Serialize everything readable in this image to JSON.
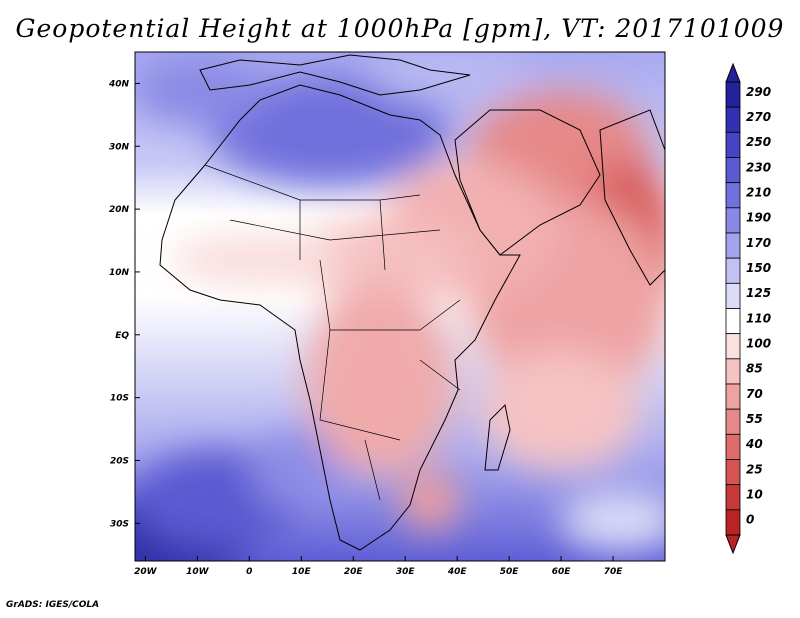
{
  "title": "Geopotential Height at 1000hPa [gpm], VT: 2017101009",
  "credit": "GrADS: IGES/COLA",
  "map": {
    "lat_labels": [
      "40N",
      "30N",
      "20N",
      "10N",
      "EQ",
      "10S",
      "20S",
      "30S"
    ],
    "lon_labels": [
      "20W",
      "10W",
      "0",
      "10E",
      "20E",
      "30E",
      "40E",
      "50E",
      "60E",
      "70E"
    ],
    "extent": {
      "lon": [
        -22,
        80
      ],
      "lat": [
        -36,
        45
      ]
    }
  },
  "colorbar": {
    "levels": [
      "290",
      "270",
      "250",
      "230",
      "210",
      "190",
      "170",
      "150",
      "125",
      "110",
      "100",
      "85",
      "70",
      "55",
      "40",
      "25",
      "10",
      "0"
    ],
    "colors": [
      "#23209c",
      "#3030b0",
      "#4444c4",
      "#5a5ad2",
      "#7171de",
      "#8989e6",
      "#a3a3ee",
      "#c1c1f4",
      "#dcdcf8",
      "#ffffff",
      "#fbe0e0",
      "#f6c2c2",
      "#eea3a3",
      "#e68888",
      "#de6c6c",
      "#d45454",
      "#c63a3a",
      "#b82424"
    ]
  }
}
